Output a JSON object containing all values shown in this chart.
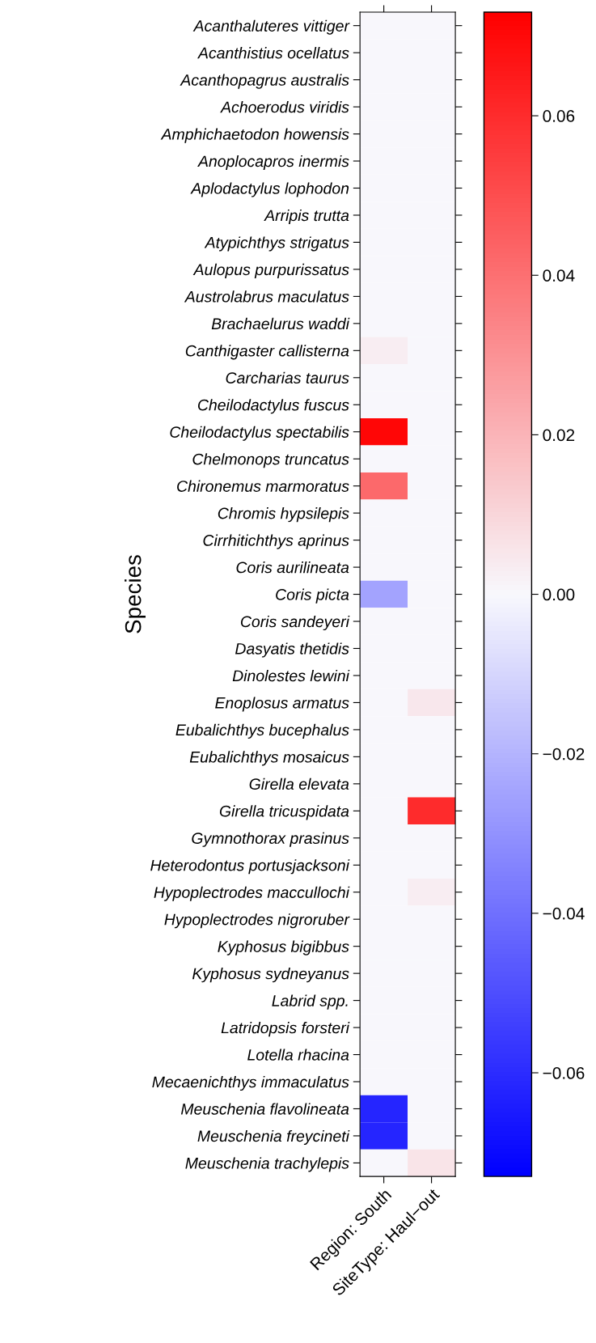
{
  "chart_data": {
    "type": "heatmap",
    "ylabel": "Species",
    "categories": [
      "Region: South",
      "SiteType: Haul−out"
    ],
    "y_categories": [
      "Acanthaluteres vittiger",
      "Acanthistius ocellatus",
      "Acanthopagrus australis",
      "Achoerodus viridis",
      "Amphichaetodon howensis",
      "Anoplocapros inermis",
      "Aplodactylus lophodon",
      "Arripis trutta",
      "Atypichthys strigatus",
      "Aulopus purpurissatus",
      "Austrolabrus maculatus",
      "Brachaelurus waddi",
      "Canthigaster callisterna",
      "Carcharias taurus",
      "Cheilodactylus fuscus",
      "Cheilodactylus spectabilis",
      "Chelmonops truncatus",
      "Chironemus marmoratus",
      "Chromis hypsilepis",
      "Cirrhitichthys aprinus",
      "Coris aurilineata",
      "Coris picta",
      "Coris sandeyeri",
      "Dasyatis thetidis",
      "Dinolestes lewini",
      "Enoplosus armatus",
      "Eubalichthys bucephalus",
      "Eubalichthys mosaicus",
      "Girella elevata",
      "Girella tricuspidata",
      "Gymnothorax prasinus",
      "Heterodontus portusjacksoni",
      "Hypoplectrodes maccullochi",
      "Hypoplectrodes nigroruber",
      "Kyphosus bigibbus",
      "Kyphosus sydneyanus",
      "Labrid spp.",
      "Latridopsis forsteri",
      "Lotella rhacina",
      "Mecaenichthys immaculatus",
      "Meuschenia flavolineata",
      "Meuschenia freycineti",
      "Meuschenia trachylepis"
    ],
    "cells": [
      [
        0,
        0
      ],
      [
        0,
        0
      ],
      [
        0,
        0
      ],
      [
        0,
        0
      ],
      [
        0,
        0
      ],
      [
        0,
        0
      ],
      [
        0,
        0
      ],
      [
        0,
        0
      ],
      [
        0,
        0
      ],
      [
        0,
        0
      ],
      [
        0,
        0
      ],
      [
        0,
        0
      ],
      [
        0.003,
        0
      ],
      [
        0,
        0
      ],
      [
        0,
        0
      ],
      [
        0.071,
        0
      ],
      [
        0,
        0
      ],
      [
        0.042,
        0
      ],
      [
        0,
        0
      ],
      [
        0,
        0
      ],
      [
        0,
        0
      ],
      [
        -0.025,
        0
      ],
      [
        0,
        0
      ],
      [
        0,
        0
      ],
      [
        0,
        0
      ],
      [
        0,
        0.005
      ],
      [
        0,
        0
      ],
      [
        0,
        0
      ],
      [
        0,
        0
      ],
      [
        0,
        0.06
      ],
      [
        0,
        0
      ],
      [
        0,
        0
      ],
      [
        0,
        0.003
      ],
      [
        0,
        0
      ],
      [
        0,
        0
      ],
      [
        0,
        0
      ],
      [
        0,
        0
      ],
      [
        0,
        0
      ],
      [
        0,
        0
      ],
      [
        0,
        0
      ],
      [
        -0.062,
        0
      ],
      [
        -0.062,
        0
      ],
      [
        0,
        0.006
      ]
    ],
    "clim": [
      -0.073,
      0.073
    ],
    "cticks": [
      {
        "value": -0.06,
        "label": "−0.06"
      },
      {
        "value": -0.04,
        "label": "−0.04"
      },
      {
        "value": -0.02,
        "label": "−0.02"
      },
      {
        "value": 0,
        "label": "0.00"
      },
      {
        "value": 0.02,
        "label": "0.02"
      },
      {
        "value": 0.04,
        "label": "0.04"
      },
      {
        "value": 0.06,
        "label": "0.06"
      }
    ]
  }
}
